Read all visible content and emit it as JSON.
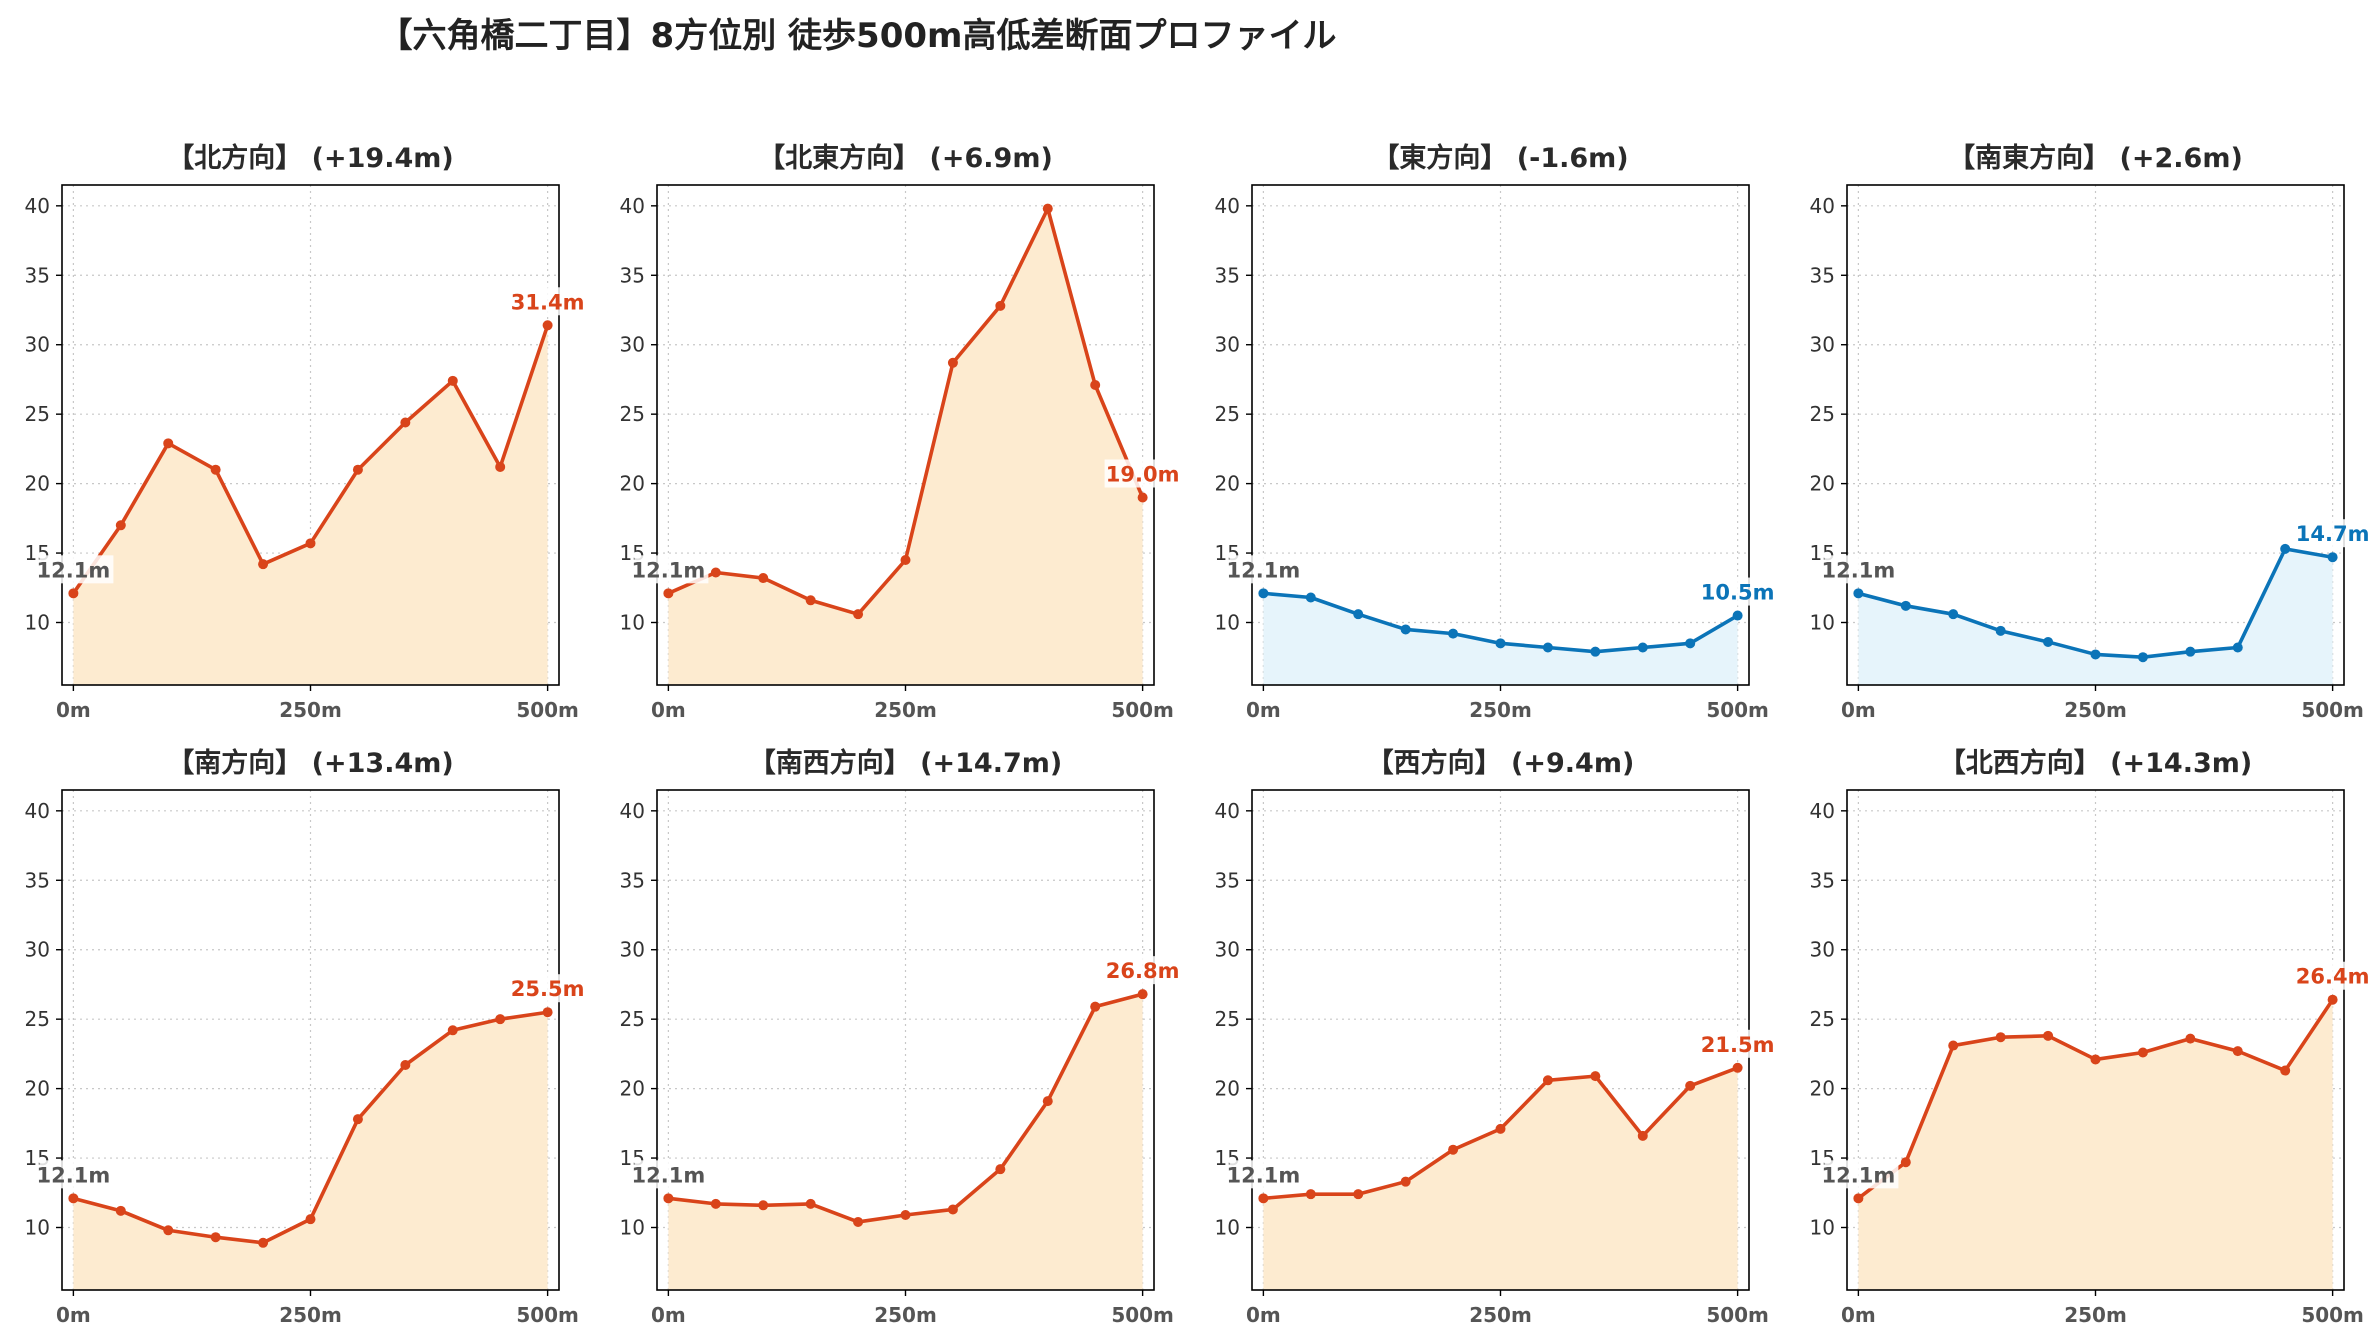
{
  "title": "【六角橋二丁目】8方位別 徒歩500m高低差断面プロファイル",
  "colors": {
    "up_line": "#d9441a",
    "up_fill": "#fdebd0",
    "down_line": "#0b74b8",
    "down_fill": "#e6f4fb",
    "start_label": "#555555"
  },
  "chart_data": [
    {
      "type": "area",
      "title": "【北方向】 (+19.4m)",
      "trend": "up",
      "x": [
        0,
        50,
        100,
        150,
        200,
        250,
        300,
        350,
        400,
        450,
        500
      ],
      "values": [
        12.1,
        17.0,
        22.9,
        21.0,
        14.2,
        15.7,
        21.0,
        24.4,
        27.4,
        21.2,
        31.4
      ],
      "ylim": [
        5.5,
        41.5
      ],
      "yticks": [
        10,
        15,
        20,
        25,
        30,
        35,
        40
      ],
      "xlim": [
        -12,
        512
      ],
      "xticks": [
        0,
        250,
        500
      ],
      "xtick_labels": [
        "0m",
        "250m",
        "500m"
      ],
      "start_label": "12.1m",
      "end_label": "31.4m",
      "grid": true
    },
    {
      "type": "area",
      "title": "【北東方向】 (+6.9m)",
      "trend": "up",
      "x": [
        0,
        50,
        100,
        150,
        200,
        250,
        300,
        350,
        400,
        450,
        500
      ],
      "values": [
        12.1,
        13.6,
        13.2,
        11.6,
        10.6,
        14.5,
        28.7,
        32.8,
        39.8,
        27.1,
        19.0
      ],
      "ylim": [
        5.5,
        41.5
      ],
      "yticks": [
        10,
        15,
        20,
        25,
        30,
        35,
        40
      ],
      "xlim": [
        -12,
        512
      ],
      "xticks": [
        0,
        250,
        500
      ],
      "xtick_labels": [
        "0m",
        "250m",
        "500m"
      ],
      "start_label": "12.1m",
      "end_label": "19.0m",
      "grid": true
    },
    {
      "type": "area",
      "title": "【東方向】 (-1.6m)",
      "trend": "down",
      "x": [
        0,
        50,
        100,
        150,
        200,
        250,
        300,
        350,
        400,
        450,
        500
      ],
      "values": [
        12.1,
        11.8,
        10.6,
        9.5,
        9.2,
        8.5,
        8.2,
        7.9,
        8.2,
        8.5,
        10.5
      ],
      "ylim": [
        5.5,
        41.5
      ],
      "yticks": [
        10,
        15,
        20,
        25,
        30,
        35,
        40
      ],
      "xlim": [
        -12,
        512
      ],
      "xticks": [
        0,
        250,
        500
      ],
      "xtick_labels": [
        "0m",
        "250m",
        "500m"
      ],
      "start_label": "12.1m",
      "end_label": "10.5m",
      "grid": true
    },
    {
      "type": "area",
      "title": "【南東方向】 (+2.6m)",
      "trend": "down",
      "x": [
        0,
        50,
        100,
        150,
        200,
        250,
        300,
        350,
        400,
        450,
        500
      ],
      "values": [
        12.1,
        11.2,
        10.6,
        9.4,
        8.6,
        7.7,
        7.5,
        7.9,
        8.2,
        15.3,
        14.7
      ],
      "ylim": [
        5.5,
        41.5
      ],
      "yticks": [
        10,
        15,
        20,
        25,
        30,
        35,
        40
      ],
      "xlim": [
        -12,
        512
      ],
      "xticks": [
        0,
        250,
        500
      ],
      "xtick_labels": [
        "0m",
        "250m",
        "500m"
      ],
      "start_label": "12.1m",
      "end_label": "14.7m",
      "grid": true
    },
    {
      "type": "area",
      "title": "【南方向】 (+13.4m)",
      "trend": "up",
      "x": [
        0,
        50,
        100,
        150,
        200,
        250,
        300,
        350,
        400,
        450,
        500
      ],
      "values": [
        12.1,
        11.2,
        9.8,
        9.3,
        8.9,
        10.6,
        17.8,
        21.7,
        24.2,
        25.0,
        25.5
      ],
      "ylim": [
        5.5,
        41.5
      ],
      "yticks": [
        10,
        15,
        20,
        25,
        30,
        35,
        40
      ],
      "xlim": [
        -12,
        512
      ],
      "xticks": [
        0,
        250,
        500
      ],
      "xtick_labels": [
        "0m",
        "250m",
        "500m"
      ],
      "start_label": "12.1m",
      "end_label": "25.5m",
      "grid": true
    },
    {
      "type": "area",
      "title": "【南西方向】 (+14.7m)",
      "trend": "up",
      "x": [
        0,
        50,
        100,
        150,
        200,
        250,
        300,
        350,
        400,
        450,
        500
      ],
      "values": [
        12.1,
        11.7,
        11.6,
        11.7,
        10.4,
        10.9,
        11.3,
        14.2,
        19.1,
        25.9,
        26.8
      ],
      "ylim": [
        5.5,
        41.5
      ],
      "yticks": [
        10,
        15,
        20,
        25,
        30,
        35,
        40
      ],
      "xlim": [
        -12,
        512
      ],
      "xticks": [
        0,
        250,
        500
      ],
      "xtick_labels": [
        "0m",
        "250m",
        "500m"
      ],
      "start_label": "12.1m",
      "end_label": "26.8m",
      "grid": true
    },
    {
      "type": "area",
      "title": "【西方向】 (+9.4m)",
      "trend": "up",
      "x": [
        0,
        50,
        100,
        150,
        200,
        250,
        300,
        350,
        400,
        450,
        500
      ],
      "values": [
        12.1,
        12.4,
        12.4,
        13.3,
        15.6,
        17.1,
        20.6,
        20.9,
        16.6,
        20.2,
        21.5
      ],
      "ylim": [
        5.5,
        41.5
      ],
      "yticks": [
        10,
        15,
        20,
        25,
        30,
        35,
        40
      ],
      "xlim": [
        -12,
        512
      ],
      "xticks": [
        0,
        250,
        500
      ],
      "xtick_labels": [
        "0m",
        "250m",
        "500m"
      ],
      "start_label": "12.1m",
      "end_label": "21.5m",
      "grid": true
    },
    {
      "type": "area",
      "title": "【北西方向】 (+14.3m)",
      "trend": "up",
      "x": [
        0,
        50,
        100,
        150,
        200,
        250,
        300,
        350,
        400,
        450,
        500
      ],
      "values": [
        12.1,
        14.7,
        23.1,
        23.7,
        23.8,
        22.1,
        22.6,
        23.6,
        22.7,
        21.3,
        26.4
      ],
      "ylim": [
        5.5,
        41.5
      ],
      "yticks": [
        10,
        15,
        20,
        25,
        30,
        35,
        40
      ],
      "xlim": [
        -12,
        512
      ],
      "xticks": [
        0,
        250,
        500
      ],
      "xtick_labels": [
        "0m",
        "250m",
        "500m"
      ],
      "start_label": "12.1m",
      "end_label": "26.4m",
      "grid": true
    }
  ]
}
